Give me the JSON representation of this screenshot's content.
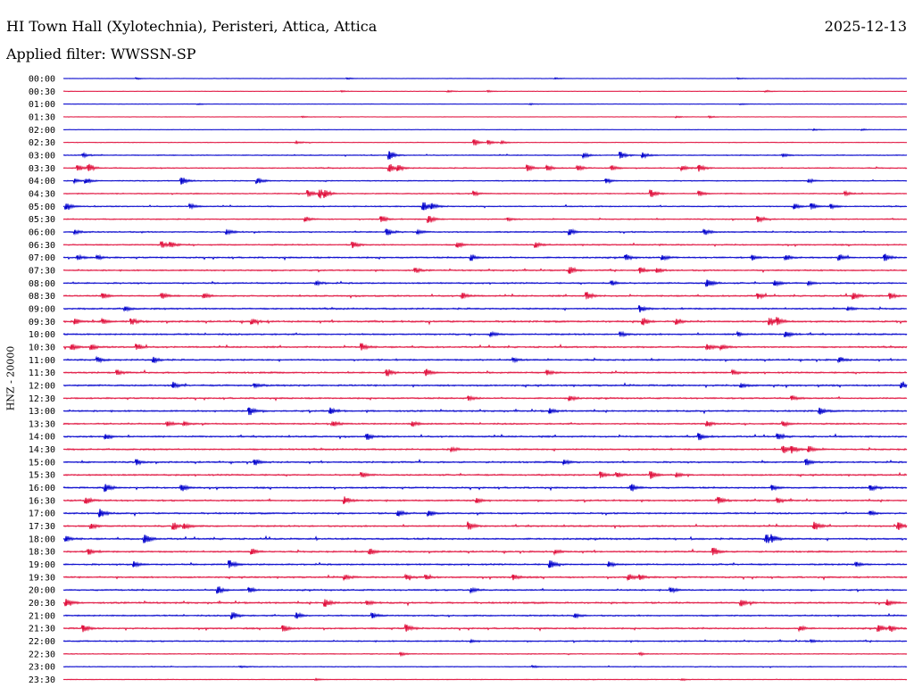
{
  "header": {
    "station": "HI Town Hall (Xylotechnia), Peristeri, Attica, Attica",
    "date": "2025-12-13",
    "filter_label": "Applied filter: WWSSN-SP"
  },
  "channel_label": "HNZ - 20000",
  "colors": {
    "odd_trace": "#0000cc",
    "even_trace": "#e0103c",
    "background": "#ffffff"
  },
  "chart_data": {
    "type": "line",
    "title": "HI Town Hall (Xylotechnia), Peristeri, Attica, Attica",
    "subtitle": "Applied filter: WWSSN-SP",
    "ylabel": "HNZ - 20000",
    "row_labels": [
      "00:00",
      "00:30",
      "01:00",
      "01:30",
      "02:00",
      "02:30",
      "03:00",
      "03:30",
      "04:00",
      "04:30",
      "05:00",
      "05:30",
      "06:00",
      "06:30",
      "07:00",
      "07:30",
      "08:00",
      "08:30",
      "09:00",
      "09:30",
      "10:00",
      "10:30",
      "11:00",
      "11:30",
      "12:00",
      "12:30",
      "13:00",
      "13:30",
      "14:00",
      "14:30",
      "15:00",
      "15:30",
      "16:00",
      "16:30",
      "17:00",
      "17:30",
      "18:00",
      "18:30",
      "19:00",
      "19:30",
      "20:00",
      "20:30",
      "21:00",
      "21:30",
      "22:00",
      "22:30",
      "23:00",
      "23:30"
    ],
    "x_unit": "minutes into row (0-30)",
    "noise_level": [
      0.3,
      0.3,
      0.3,
      0.3,
      0.3,
      0.5,
      0.8,
      1.0,
      0.9,
      1.0,
      1.0,
      1.0,
      1.2,
      1.2,
      1.4,
      1.3,
      1.4,
      1.4,
      1.5,
      1.7,
      1.5,
      1.5,
      1.5,
      1.5,
      1.6,
      1.4,
      1.5,
      1.4,
      1.5,
      1.5,
      1.5,
      1.5,
      1.5,
      1.5,
      1.5,
      1.5,
      1.6,
      1.5,
      1.5,
      1.5,
      1.4,
      1.6,
      1.3,
      1.4,
      1.2,
      0.8,
      0.7,
      0.6
    ],
    "events": [
      [
        [
          2.6,
          0.8
        ],
        [
          10.1,
          0.8
        ],
        [
          17.5,
          0.8
        ],
        [
          24.0,
          0.6
        ]
      ],
      [
        [
          9.9,
          0.7
        ],
        [
          13.7,
          0.8
        ],
        [
          15.1,
          1.0
        ],
        [
          25.0,
          0.8
        ]
      ],
      [
        [
          4.8,
          0.5
        ],
        [
          16.6,
          0.6
        ],
        [
          24.1,
          0.5
        ]
      ],
      [
        [
          8.5,
          0.7
        ],
        [
          21.8,
          0.8
        ],
        [
          23.0,
          0.8
        ]
      ],
      [
        [
          26.7,
          0.7
        ],
        [
          28.4,
          0.7
        ]
      ],
      [
        [
          14.6,
          3.5
        ],
        [
          15.1,
          2.5
        ],
        [
          8.3,
          1.2
        ],
        [
          15.6,
          1.2
        ]
      ],
      [
        [
          11.6,
          4.5
        ],
        [
          18.5,
          2.5
        ],
        [
          19.8,
          4.0
        ],
        [
          20.6,
          2.8
        ],
        [
          0.7,
          1.8
        ],
        [
          25.6,
          1.5
        ]
      ],
      [
        [
          0.5,
          3.2
        ],
        [
          0.9,
          3.8
        ],
        [
          11.6,
          4.0
        ],
        [
          11.9,
          2.8
        ],
        [
          16.5,
          3.5
        ],
        [
          17.2,
          3.0
        ],
        [
          18.3,
          2.8
        ],
        [
          19.5,
          2.8
        ],
        [
          22.0,
          2.5
        ],
        [
          22.6,
          3.8
        ]
      ],
      [
        [
          0.4,
          2.0
        ],
        [
          0.8,
          2.5
        ],
        [
          4.2,
          3.8
        ],
        [
          6.9,
          2.8
        ],
        [
          19.3,
          2.5
        ],
        [
          26.5,
          2.0
        ]
      ],
      [
        [
          8.7,
          4.0
        ],
        [
          9.1,
          4.8
        ],
        [
          9.3,
          3.5
        ],
        [
          14.6,
          2.5
        ],
        [
          20.9,
          4.0
        ],
        [
          22.6,
          2.8
        ],
        [
          27.8,
          2.2
        ]
      ],
      [
        [
          0.1,
          3.5
        ],
        [
          4.5,
          2.5
        ],
        [
          12.8,
          4.5
        ],
        [
          13.1,
          3.0
        ],
        [
          26.0,
          2.8
        ],
        [
          26.6,
          3.8
        ],
        [
          27.3,
          2.5
        ]
      ],
      [
        [
          8.6,
          2.5
        ],
        [
          11.3,
          3.5
        ],
        [
          13.0,
          4.0
        ],
        [
          24.7,
          3.2
        ],
        [
          15.8,
          1.8
        ]
      ],
      [
        [
          0.4,
          2.0
        ],
        [
          5.8,
          2.8
        ],
        [
          11.5,
          3.8
        ],
        [
          18.0,
          3.2
        ],
        [
          22.8,
          3.0
        ],
        [
          12.6,
          2.0
        ]
      ],
      [
        [
          3.5,
          3.5
        ],
        [
          3.8,
          2.5
        ],
        [
          10.3,
          3.5
        ],
        [
          14.0,
          2.8
        ],
        [
          16.8,
          3.0
        ]
      ],
      [
        [
          0.5,
          2.5
        ],
        [
          1.2,
          2.0
        ],
        [
          14.5,
          3.5
        ],
        [
          20.0,
          3.0
        ],
        [
          21.3,
          2.5
        ],
        [
          25.7,
          2.8
        ],
        [
          27.6,
          3.2
        ],
        [
          29.2,
          4.0
        ],
        [
          24.5,
          2.5
        ]
      ],
      [
        [
          12.5,
          2.5
        ],
        [
          18.0,
          4.0
        ],
        [
          20.5,
          3.2
        ],
        [
          21.1,
          2.8
        ]
      ],
      [
        [
          19.5,
          2.5
        ],
        [
          22.9,
          4.2
        ],
        [
          25.3,
          2.8
        ],
        [
          26.5,
          2.0
        ],
        [
          9.0,
          2.0
        ]
      ],
      [
        [
          1.4,
          2.8
        ],
        [
          3.5,
          3.0
        ],
        [
          5.0,
          2.5
        ],
        [
          14.2,
          3.2
        ],
        [
          18.6,
          4.2
        ],
        [
          24.7,
          2.8
        ],
        [
          28.1,
          3.5
        ],
        [
          29.4,
          3.0
        ]
      ],
      [
        [
          2.2,
          2.2
        ],
        [
          20.5,
          3.5
        ],
        [
          27.9,
          2.0
        ]
      ],
      [
        [
          0.4,
          3.0
        ],
        [
          1.4,
          2.8
        ],
        [
          2.4,
          3.5
        ],
        [
          6.7,
          3.0
        ],
        [
          20.6,
          3.8
        ],
        [
          21.8,
          3.2
        ],
        [
          25.1,
          4.5
        ],
        [
          25.4,
          3.5
        ]
      ],
      [
        [
          19.8,
          2.5
        ],
        [
          24.0,
          2.0
        ],
        [
          25.7,
          3.2
        ],
        [
          15.2,
          2.0
        ]
      ],
      [
        [
          0.3,
          3.0
        ],
        [
          1.0,
          2.5
        ],
        [
          2.6,
          3.5
        ],
        [
          10.6,
          3.8
        ],
        [
          22.9,
          3.2
        ],
        [
          23.4,
          2.5
        ]
      ],
      [
        [
          1.2,
          2.5
        ],
        [
          3.2,
          2.8
        ],
        [
          27.6,
          2.8
        ],
        [
          16.0,
          2.0
        ]
      ],
      [
        [
          1.9,
          2.5
        ],
        [
          11.5,
          3.8
        ],
        [
          12.9,
          4.0
        ],
        [
          17.2,
          2.5
        ],
        [
          23.8,
          2.5
        ]
      ],
      [
        [
          3.9,
          3.2
        ],
        [
          6.8,
          2.2
        ],
        [
          24.1,
          2.5
        ],
        [
          29.8,
          3.5
        ]
      ],
      [
        [
          14.4,
          3.0
        ],
        [
          18.0,
          2.8
        ],
        [
          25.9,
          2.5
        ]
      ],
      [
        [
          6.6,
          4.5
        ],
        [
          9.5,
          3.2
        ],
        [
          17.3,
          2.8
        ],
        [
          26.9,
          3.5
        ]
      ],
      [
        [
          3.7,
          2.5
        ],
        [
          4.3,
          2.2
        ],
        [
          9.6,
          2.5
        ],
        [
          12.4,
          2.8
        ],
        [
          22.9,
          2.8
        ],
        [
          25.6,
          2.5
        ]
      ],
      [
        [
          1.5,
          3.0
        ],
        [
          10.8,
          3.0
        ],
        [
          22.6,
          3.5
        ],
        [
          25.4,
          3.2
        ]
      ],
      [
        [
          25.6,
          4.2
        ],
        [
          25.9,
          3.8
        ],
        [
          26.5,
          3.5
        ],
        [
          13.8,
          2.2
        ]
      ],
      [
        [
          2.6,
          2.8
        ],
        [
          6.8,
          2.8
        ],
        [
          17.8,
          2.5
        ],
        [
          26.4,
          3.5
        ]
      ],
      [
        [
          10.6,
          2.8
        ],
        [
          19.1,
          4.0
        ],
        [
          20.9,
          3.8
        ],
        [
          19.7,
          2.5
        ],
        [
          21.8,
          2.5
        ]
      ],
      [
        [
          1.5,
          4.5
        ],
        [
          4.2,
          3.2
        ],
        [
          20.2,
          3.5
        ],
        [
          25.2,
          3.0
        ],
        [
          28.7,
          2.8
        ]
      ],
      [
        [
          0.8,
          3.5
        ],
        [
          10.0,
          3.8
        ],
        [
          23.3,
          3.5
        ],
        [
          14.7,
          2.5
        ],
        [
          25.4,
          2.5
        ]
      ],
      [
        [
          1.3,
          4.5
        ],
        [
          11.9,
          3.2
        ],
        [
          13.0,
          3.0
        ],
        [
          28.7,
          2.5
        ]
      ],
      [
        [
          1.0,
          2.8
        ],
        [
          3.9,
          3.8
        ],
        [
          4.3,
          3.2
        ],
        [
          14.4,
          4.2
        ],
        [
          26.7,
          4.0
        ],
        [
          29.7,
          4.0
        ]
      ],
      [
        [
          0.1,
          2.5
        ],
        [
          2.9,
          5.0
        ],
        [
          25.0,
          5.0
        ],
        [
          25.2,
          3.5
        ]
      ],
      [
        [
          0.9,
          3.2
        ],
        [
          6.7,
          3.0
        ],
        [
          10.9,
          3.5
        ],
        [
          23.1,
          4.5
        ],
        [
          17.5,
          2.0
        ]
      ],
      [
        [
          2.5,
          3.0
        ],
        [
          5.9,
          4.5
        ],
        [
          17.3,
          4.2
        ],
        [
          19.4,
          2.5
        ],
        [
          28.2,
          2.5
        ]
      ],
      [
        [
          10.0,
          2.8
        ],
        [
          12.2,
          2.8
        ],
        [
          12.9,
          2.5
        ],
        [
          16.0,
          3.0
        ],
        [
          20.1,
          3.2
        ],
        [
          20.5,
          2.5
        ]
      ],
      [
        [
          5.5,
          4.0
        ],
        [
          6.6,
          3.0
        ],
        [
          14.5,
          2.5
        ],
        [
          21.6,
          2.5
        ]
      ],
      [
        [
          0.1,
          4.0
        ],
        [
          9.3,
          4.5
        ],
        [
          24.1,
          3.5
        ],
        [
          29.3,
          3.0
        ],
        [
          10.8,
          2.2
        ]
      ],
      [
        [
          6.0,
          4.0
        ],
        [
          8.3,
          3.0
        ],
        [
          11.0,
          3.0
        ],
        [
          18.2,
          2.5
        ]
      ],
      [
        [
          0.7,
          3.5
        ],
        [
          7.8,
          3.8
        ],
        [
          12.2,
          4.0
        ],
        [
          29.0,
          3.5
        ],
        [
          29.4,
          3.0
        ],
        [
          26.2,
          2.5
        ]
      ],
      [
        [
          14.5,
          1.2
        ],
        [
          26.6,
          1.2
        ]
      ],
      [
        [
          12.0,
          1.5
        ],
        [
          20.5,
          1.2
        ]
      ],
      [
        [
          16.7,
          1.0
        ],
        [
          6.3,
          0.8
        ]
      ],
      [
        [
          9.0,
          0.8
        ],
        [
          22.0,
          0.8
        ]
      ]
    ]
  }
}
